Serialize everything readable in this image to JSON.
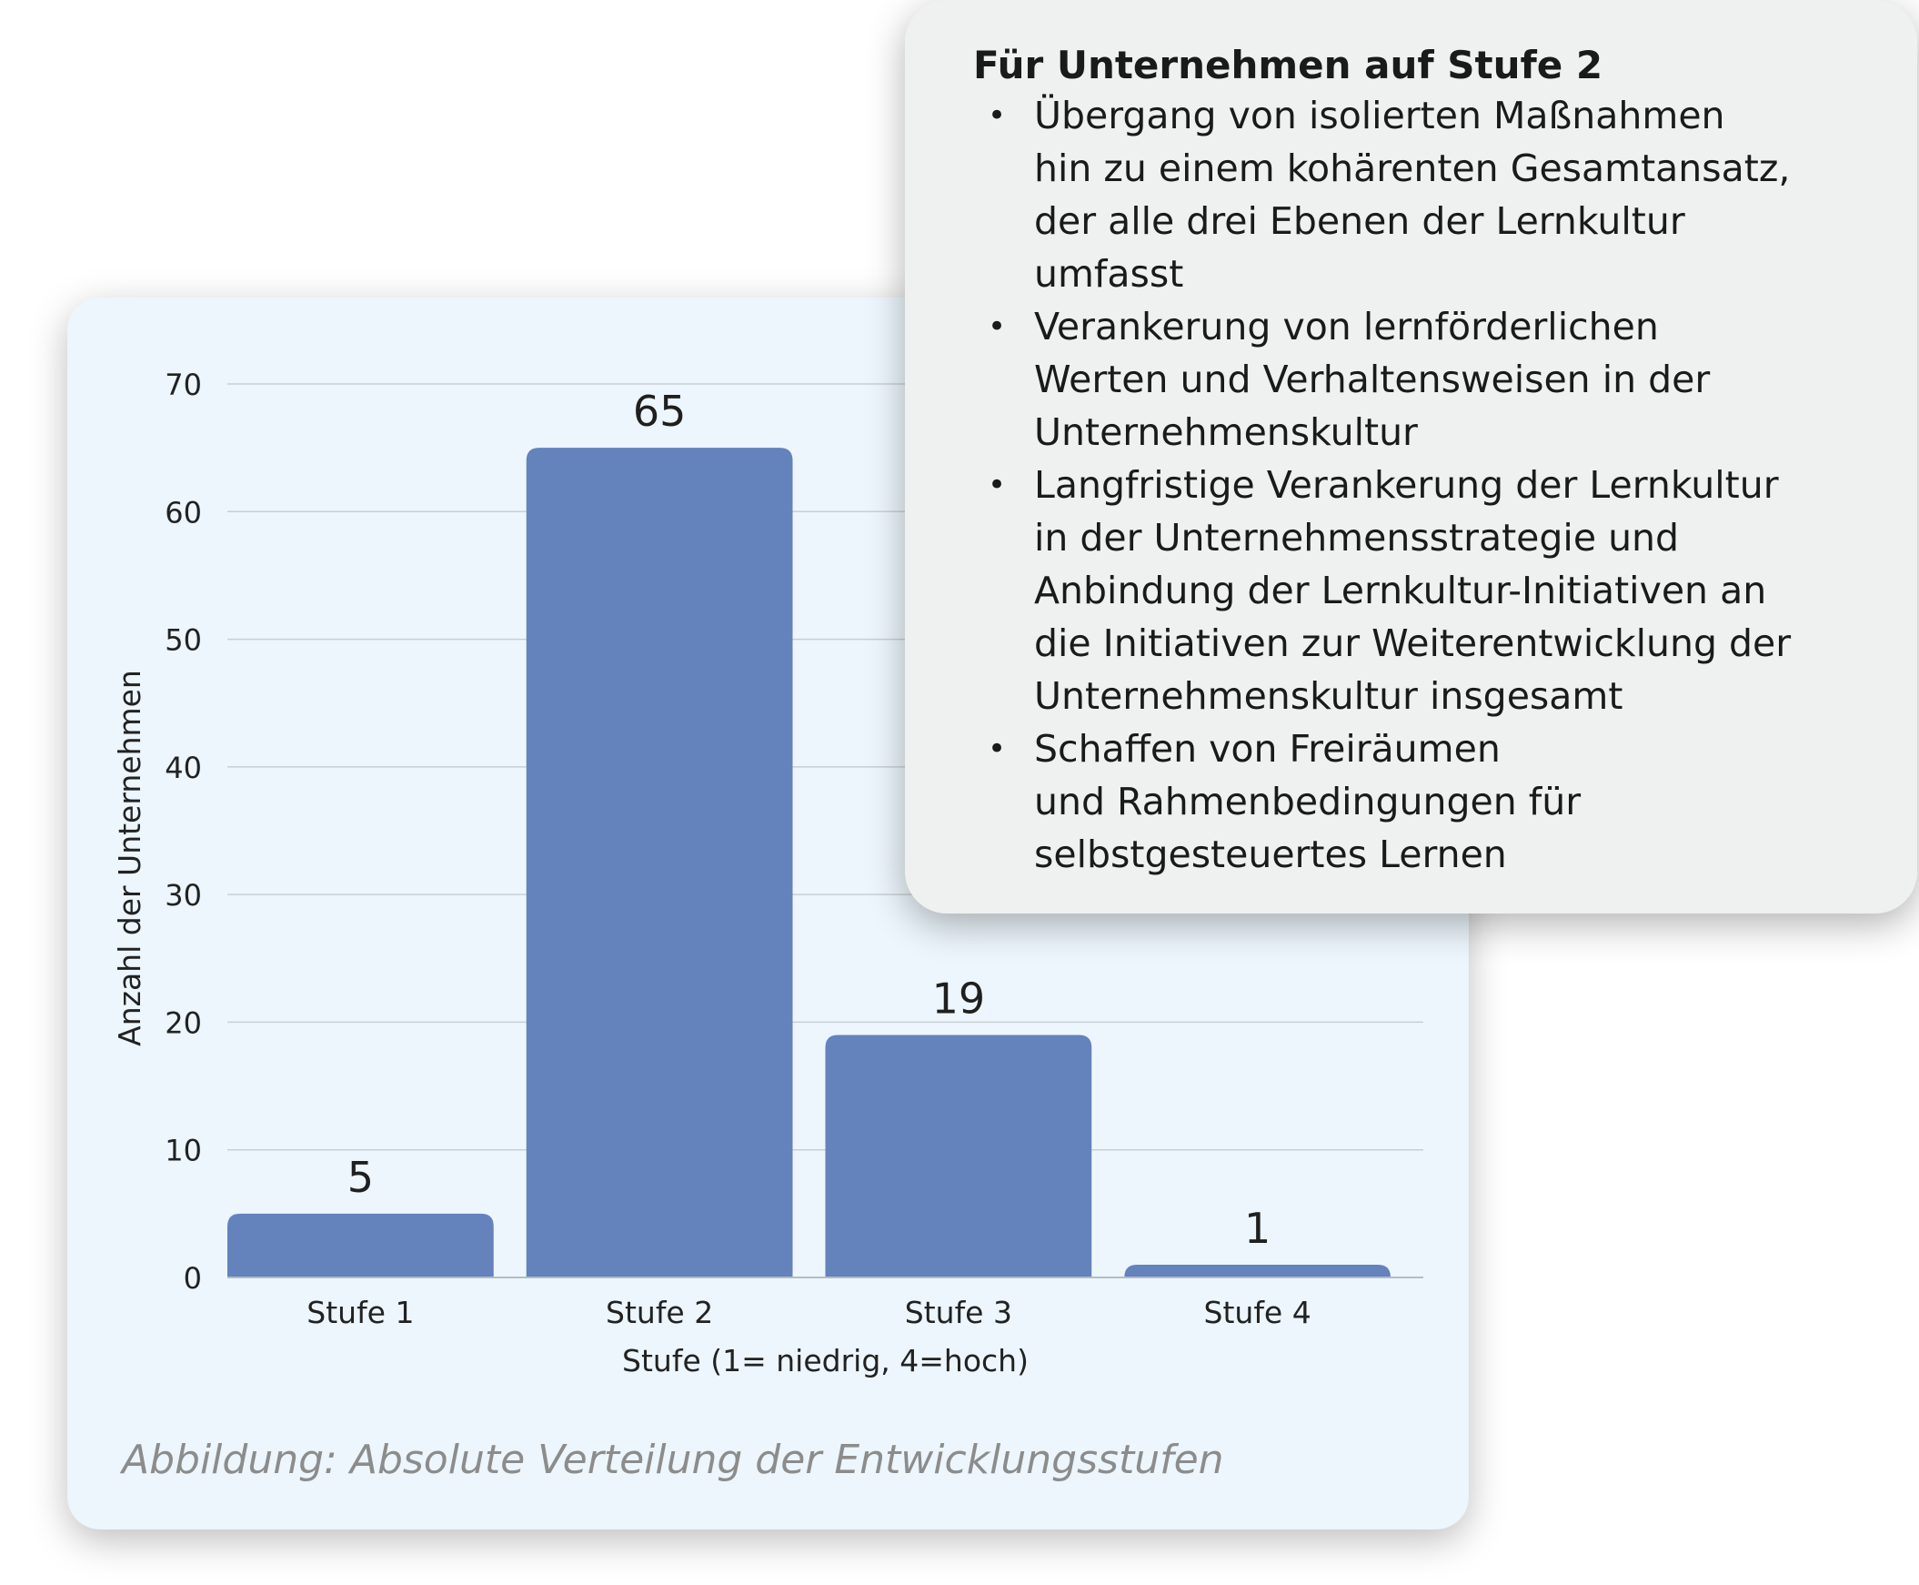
{
  "chart_data": {
    "type": "bar",
    "categories": [
      "Stufe 1",
      "Stufe 2",
      "Stufe 3",
      "Stufe 4"
    ],
    "values": [
      5,
      65,
      19,
      1
    ],
    "data_labels": [
      "5",
      "65",
      "19",
      "1"
    ],
    "xlabel": "Stufe (1= niedrig, 4=hoch)",
    "ylabel": "Anzahl der Unternehmen",
    "ylim": [
      0,
      70
    ],
    "yticks": [
      0,
      10,
      20,
      30,
      40,
      50,
      60,
      70
    ],
    "grid": true,
    "bar_color": "#6482bb"
  },
  "caption": "Abbildung: Absolute Verteilung der Entwicklungsstufen",
  "info_box": {
    "title": "Für Unternehmen auf Stufe 2",
    "bullet_symbol": "•",
    "items": [
      {
        "lines": [
          "Übergang von isolierten Maßnahmen",
          "hin zu einem kohärenten Gesamtansatz,",
          "der alle drei Ebenen der Lernkultur",
          "umfasst"
        ]
      },
      {
        "lines": [
          "Verankerung von lernförderlichen",
          "Werten und Verhaltensweisen in der",
          "Unternehmenskultur"
        ]
      },
      {
        "lines": [
          "Langfristige Verankerung der Lernkultur",
          "in der Unternehmensstrategie und",
          "Anbindung der Lernkultur-Initiativen an",
          "die Initiativen zur Weiterentwicklung der",
          "Unternehmenskultur insgesamt"
        ]
      },
      {
        "lines": [
          "Schaffen von Freiräumen",
          "und Rahmenbedingungen für",
          "selbstgesteuertes Lernen"
        ]
      }
    ]
  },
  "colors": {
    "chart_background": "#ecf6fc",
    "info_background": "#eff1f1",
    "gridline": "#c9cfd3",
    "caption": "#8c8c8c"
  }
}
